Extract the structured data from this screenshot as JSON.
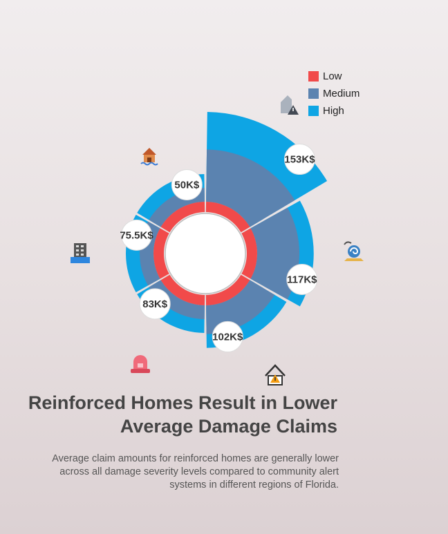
{
  "chart_data": {
    "type": "radial-bar",
    "title": "Reinforced Homes Result in Lower Average Damage Claims",
    "subtitle": "Average claim amounts for reinforced homes are generally lower across all damage severity levels compared to community alert systems in different regions of Florida.",
    "legend_position": "top-right",
    "series": [
      {
        "name": "Low",
        "color": "#f14a4a"
      },
      {
        "name": "Medium",
        "color": "#5b83b0"
      },
      {
        "name": "High",
        "color": "#0ea5e4"
      }
    ],
    "categories": [
      {
        "label": "153K$",
        "low": 12,
        "medium": 62,
        "high": 153,
        "icon": "house-warning-icon"
      },
      {
        "label": "117K$",
        "low": 12,
        "medium": 50,
        "high": 117,
        "icon": "storm-icon"
      },
      {
        "label": "102K$",
        "low": 12,
        "medium": 50,
        "high": 102,
        "icon": "home-alert-icon"
      },
      {
        "label": "83K$",
        "low": 12,
        "medium": 50,
        "high": 83,
        "icon": "siren-icon"
      },
      {
        "label": "75.5K$",
        "low": 12,
        "medium": 50,
        "high": 75.5,
        "icon": "flooded-building-icon"
      },
      {
        "label": "50K$",
        "low": 12,
        "medium": 45,
        "high": 50,
        "icon": "flooded-house-icon"
      }
    ]
  }
}
